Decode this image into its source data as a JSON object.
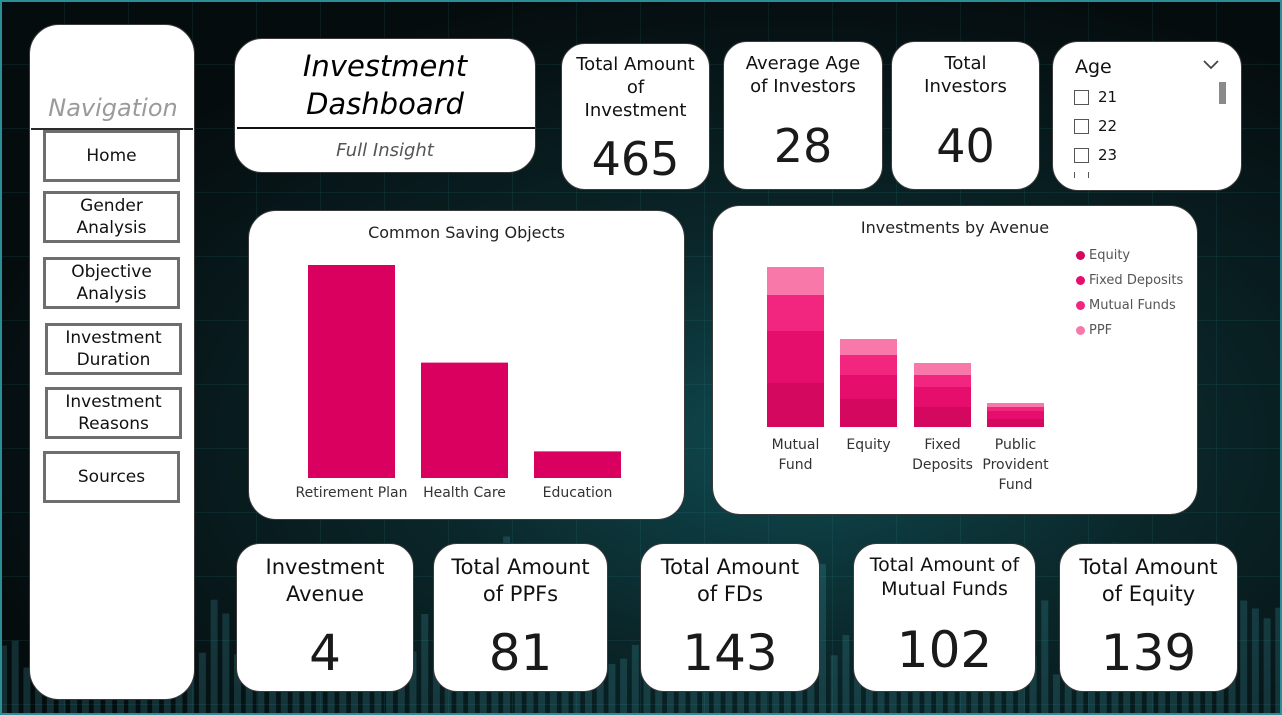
{
  "navigation": {
    "title": "Navigation",
    "items": [
      {
        "label": "Home"
      },
      {
        "label": "Gender Analysis"
      },
      {
        "label": "Objective Analysis"
      },
      {
        "label": "Investment Duration"
      },
      {
        "label": "Investment Reasons"
      },
      {
        "label": "Sources"
      }
    ]
  },
  "header": {
    "title_line1": "Investment",
    "title_line2": "Dashboard",
    "subtitle": "Full Insight"
  },
  "kpis_top": [
    {
      "label_lines": [
        "Total Amount",
        "of",
        "Investment"
      ],
      "value": "465"
    },
    {
      "label_lines": [
        "Average Age",
        "of Investors"
      ],
      "value": "28"
    },
    {
      "label_lines": [
        "Total",
        "Investors"
      ],
      "value": "40"
    }
  ],
  "age_slicer": {
    "title": "Age",
    "options": [
      "21",
      "22",
      "23"
    ]
  },
  "kpis_bottom": [
    {
      "label_lines": [
        "Investment",
        "Avenue"
      ],
      "value": "4"
    },
    {
      "label_lines": [
        "Total Amount",
        "of PPFs"
      ],
      "value": "81"
    },
    {
      "label_lines": [
        "Total Amount",
        "of FDs"
      ],
      "value": "143"
    },
    {
      "label_lines": [
        "Total Amount of",
        "Mutual Funds"
      ],
      "value": "102"
    },
    {
      "label_lines": [
        "Total Amount",
        "of Equity"
      ],
      "value": "139"
    }
  ],
  "colors": {
    "bar": "#d9005f",
    "series": [
      "#d4085f",
      "#e60e6d",
      "#f2267f",
      "#f878aa"
    ],
    "accent_frame": "#2a8e96"
  },
  "chart_data": [
    {
      "type": "bar",
      "title": "Common Saving Objects",
      "categories": [
        "Retirement Plan",
        "Health Care",
        "Education"
      ],
      "values": [
        24,
        13,
        3
      ],
      "ylim": [
        0,
        24
      ]
    },
    {
      "type": "bar",
      "stacked": true,
      "title": "Investments by Avenue",
      "categories": [
        [
          "Mutual",
          "Fund"
        ],
        [
          "Equity"
        ],
        [
          "Fixed",
          "Deposits"
        ],
        [
          "Public",
          "Provident",
          "Fund"
        ]
      ],
      "series": [
        {
          "name": "Equity",
          "values": [
            11,
            7,
            5,
            2
          ]
        },
        {
          "name": "Fixed Deposits",
          "values": [
            13,
            6,
            5,
            2
          ]
        },
        {
          "name": "Mutual Funds",
          "values": [
            9,
            5,
            3,
            1
          ]
        },
        {
          "name": "PPF",
          "values": [
            7,
            4,
            3,
            1
          ]
        }
      ],
      "ylim": [
        0,
        40
      ],
      "legend": "top-right"
    }
  ]
}
